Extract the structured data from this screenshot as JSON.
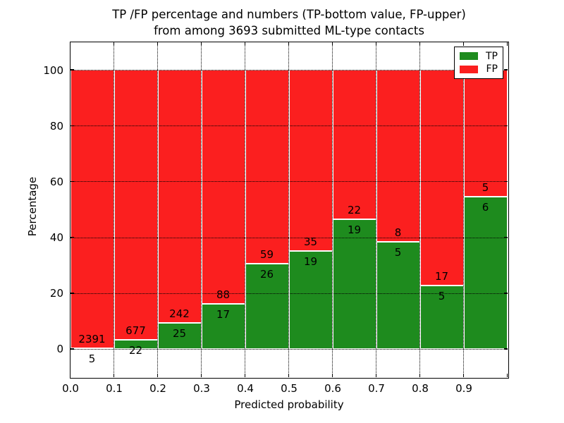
{
  "chart_data": {
    "type": "bar",
    "stacked": true,
    "normalized_to": 100,
    "title_line1": "TP /FP percentage and numbers (TP-bottom value, FP-upper)",
    "title_line2": "from among 3693 submitted ML-type contacts",
    "xlabel": "Predicted probability",
    "ylabel": "Percentage",
    "total_contacts": 3693,
    "x_tick_labels": [
      "0.0",
      "0.1",
      "0.2",
      "0.3",
      "0.4",
      "0.5",
      "0.6",
      "0.7",
      "0.8",
      "0.9"
    ],
    "y_ticks": [
      0,
      20,
      40,
      60,
      80,
      100
    ],
    "ylim": [
      -10,
      110
    ],
    "xlim": [
      0.0,
      1.0
    ],
    "bin_width": 0.1,
    "grid": "dotted",
    "colors": {
      "tp": "#1e8b1e",
      "fp": "#fb1f1f",
      "background": "#ffffff",
      "text": "#000000"
    },
    "series": [
      {
        "name": "TP",
        "counts": [
          5,
          22,
          25,
          17,
          26,
          19,
          19,
          5,
          5,
          6
        ]
      },
      {
        "name": "FP",
        "counts": [
          2391,
          677,
          242,
          88,
          59,
          35,
          22,
          8,
          17,
          5
        ]
      }
    ],
    "tp_percent": [
      0.21,
      3.15,
      9.36,
      16.19,
      30.59,
      35.19,
      46.34,
      38.46,
      22.73,
      54.55
    ],
    "legend": {
      "position": "upper right",
      "entries": [
        {
          "label": "TP",
          "color": "#1e8b1e"
        },
        {
          "label": "FP",
          "color": "#fb1f1f"
        }
      ]
    }
  }
}
